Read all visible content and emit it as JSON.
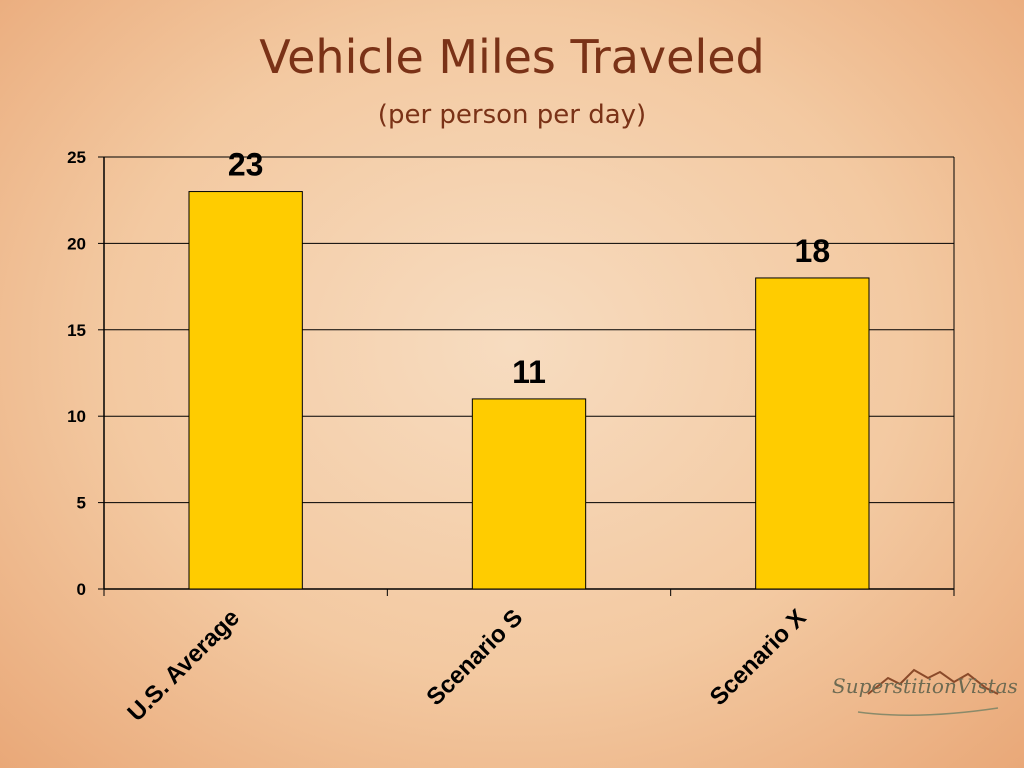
{
  "slide": {
    "title": "Vehicle Miles Traveled",
    "subtitle": "(per person per day)"
  },
  "logo": {
    "text": "SuperstitionVistas"
  },
  "colors": {
    "bar": "#ffcc00",
    "bar_border": "#000000",
    "title": "#7a3217"
  },
  "chart_data": {
    "type": "bar",
    "title": "Vehicle Miles Traveled",
    "subtitle": "(per person per day)",
    "categories": [
      "U.S. Average",
      "Scenario S",
      "Scenario X"
    ],
    "values": [
      23,
      11,
      18
    ],
    "data_labels": [
      "23",
      "11",
      "18"
    ],
    "ylim": [
      0,
      25
    ],
    "yticks": [
      0,
      5,
      10,
      15,
      20,
      25
    ],
    "grid": true,
    "legend": "none"
  }
}
